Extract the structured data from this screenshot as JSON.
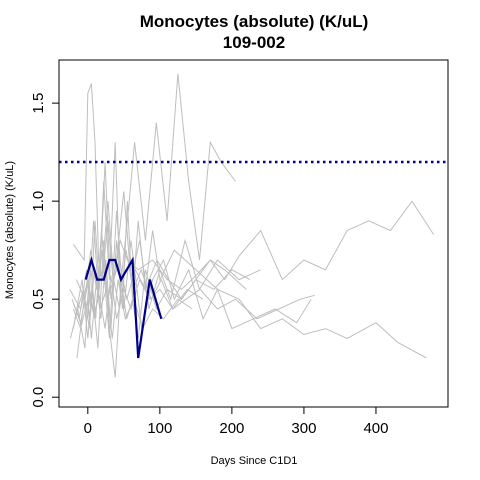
{
  "chart_data": {
    "type": "line",
    "title": "Monocytes (absolute) (K/uL)",
    "subtitle": "109-002",
    "xlabel": "Days Since C1D1",
    "ylabel": "Monocytes (absolute) (K/uL)",
    "xlim": [
      -40,
      500
    ],
    "ylim": [
      -0.05,
      1.72
    ],
    "x_ticks": [
      0,
      100,
      200,
      300,
      400
    ],
    "x_tick_labels": [
      "0",
      "100",
      "200",
      "300",
      "400"
    ],
    "y_ticks": [
      0.0,
      0.5,
      1.0,
      1.5
    ],
    "y_tick_labels": [
      "0.0",
      "0.5",
      "1.0",
      "1.5"
    ],
    "grid": false,
    "reference_line": {
      "y": 1.2,
      "style": "dotted",
      "color": "#00008b"
    },
    "colors": {
      "background_series": "#bebebe",
      "highlight_series": "#00008b",
      "reference_line": "#00008b"
    },
    "background_series": [
      {
        "x": [
          -20,
          -5,
          0,
          5,
          10,
          15,
          20,
          28,
          35,
          45,
          55,
          70,
          90,
          110,
          130,
          150,
          170,
          190,
          210,
          240,
          270,
          300,
          330,
          360,
          390,
          420,
          450,
          480
        ],
        "y": [
          0.78,
          0.7,
          1.55,
          1.6,
          1.3,
          0.7,
          0.6,
          0.9,
          0.6,
          0.8,
          0.7,
          0.65,
          0.7,
          0.6,
          0.55,
          0.62,
          0.7,
          0.6,
          0.72,
          0.85,
          0.6,
          0.7,
          0.65,
          0.85,
          0.9,
          0.85,
          1.0,
          0.83
        ]
      },
      {
        "x": [
          -15,
          -5,
          0,
          8,
          15,
          22,
          30,
          38,
          45,
          55,
          65,
          80,
          95,
          110,
          125,
          140,
          155,
          170,
          185,
          205
        ],
        "y": [
          0.2,
          0.5,
          0.4,
          0.9,
          0.5,
          1.1,
          0.6,
          1.3,
          0.55,
          0.9,
          1.3,
          0.8,
          1.4,
          0.9,
          1.65,
          1.1,
          0.7,
          1.3,
          1.2,
          1.1
        ]
      },
      {
        "x": [
          -20,
          -10,
          0,
          5,
          12,
          18,
          25,
          32,
          40,
          48,
          55,
          62,
          70,
          80,
          90,
          100,
          120,
          150,
          180,
          210,
          240,
          270,
          300,
          330,
          360,
          400,
          430,
          470
        ],
        "y": [
          0.45,
          0.35,
          0.5,
          0.3,
          0.6,
          0.4,
          0.7,
          0.35,
          0.8,
          0.45,
          1.0,
          0.5,
          0.9,
          0.55,
          0.85,
          0.6,
          0.75,
          0.65,
          0.55,
          0.5,
          0.35,
          0.4,
          0.32,
          0.35,
          0.3,
          0.38,
          0.28,
          0.2
        ]
      },
      {
        "x": [
          -25,
          -10,
          0,
          10,
          20,
          30,
          40,
          50,
          60,
          75,
          90,
          105,
          120,
          140,
          160,
          180,
          200,
          230,
          260,
          290,
          310
        ],
        "y": [
          0.55,
          0.45,
          0.6,
          0.4,
          0.75,
          0.3,
          0.95,
          0.45,
          0.8,
          0.35,
          0.6,
          0.7,
          0.5,
          0.65,
          0.4,
          0.55,
          0.35,
          0.4,
          0.45,
          0.38,
          0.5
        ]
      },
      {
        "x": [
          -20,
          -8,
          0,
          6,
          14,
          22,
          30,
          38,
          46,
          54,
          62,
          70,
          80,
          95,
          110,
          130,
          150,
          170,
          190,
          220
        ],
        "y": [
          0.35,
          0.6,
          0.3,
          0.55,
          0.25,
          0.8,
          0.35,
          0.1,
          0.6,
          0.4,
          0.5,
          0.3,
          0.65,
          0.45,
          0.55,
          0.5,
          0.6,
          0.7,
          0.65,
          0.55
        ]
      },
      {
        "x": [
          -22,
          -12,
          -2,
          4,
          10,
          16,
          24,
          32,
          40,
          50,
          60,
          72,
          85,
          100,
          115,
          135,
          155,
          180,
          210,
          240
        ],
        "y": [
          0.5,
          0.4,
          0.65,
          0.45,
          0.9,
          0.55,
          1.2,
          0.5,
          0.7,
          1.05,
          0.6,
          0.8,
          0.45,
          0.65,
          0.5,
          0.8,
          0.55,
          0.7,
          0.6,
          0.65
        ]
      },
      {
        "x": [
          -18,
          -6,
          2,
          9,
          17,
          26,
          34,
          42,
          52,
          64,
          76,
          90,
          105,
          125,
          145
        ],
        "y": [
          0.4,
          0.55,
          0.35,
          0.65,
          0.45,
          0.55,
          0.3,
          0.6,
          0.4,
          0.5,
          0.35,
          0.45,
          0.4,
          0.5,
          0.45
        ]
      },
      {
        "x": [
          -24,
          -14,
          -4,
          3,
          11,
          19,
          27,
          36,
          44,
          53,
          63,
          74,
          88,
          102,
          118,
          138,
          160
        ],
        "y": [
          0.3,
          0.45,
          0.25,
          0.7,
          0.4,
          0.85,
          0.5,
          0.6,
          0.45,
          0.75,
          0.55,
          0.65,
          0.5,
          0.6,
          0.45,
          0.55,
          0.5
        ]
      },
      {
        "x": [
          -16,
          -4,
          4,
          12,
          20,
          28,
          36,
          44,
          54,
          66,
          80,
          96,
          112,
          130,
          150,
          175,
          200,
          225
        ],
        "y": [
          0.6,
          0.5,
          0.75,
          0.55,
          0.65,
          1.0,
          0.6,
          0.7,
          0.5,
          0.65,
          0.55,
          0.7,
          0.6,
          0.5,
          0.6,
          0.55,
          0.65,
          0.6
        ]
      },
      {
        "x": [
          -20,
          -10,
          0,
          8,
          16,
          24,
          32,
          40,
          50,
          60,
          72,
          86,
          100,
          118,
          136,
          156,
          180,
          205,
          235,
          265,
          295,
          315
        ],
        "y": [
          0.48,
          0.38,
          0.58,
          0.42,
          0.52,
          0.35,
          0.62,
          0.4,
          0.55,
          0.45,
          0.6,
          0.5,
          0.55,
          0.45,
          0.5,
          0.55,
          0.45,
          0.5,
          0.4,
          0.45,
          0.5,
          0.52
        ]
      }
    ],
    "series": [
      {
        "x": [
          -3,
          5,
          13,
          22,
          30,
          38,
          46,
          54,
          62,
          70,
          78,
          86,
          94,
          102
        ],
        "y": [
          0.6,
          0.7,
          0.6,
          0.6,
          0.7,
          0.7,
          0.6,
          0.65,
          0.7,
          0.2,
          0.4,
          0.6,
          0.5,
          0.4
        ]
      }
    ]
  }
}
